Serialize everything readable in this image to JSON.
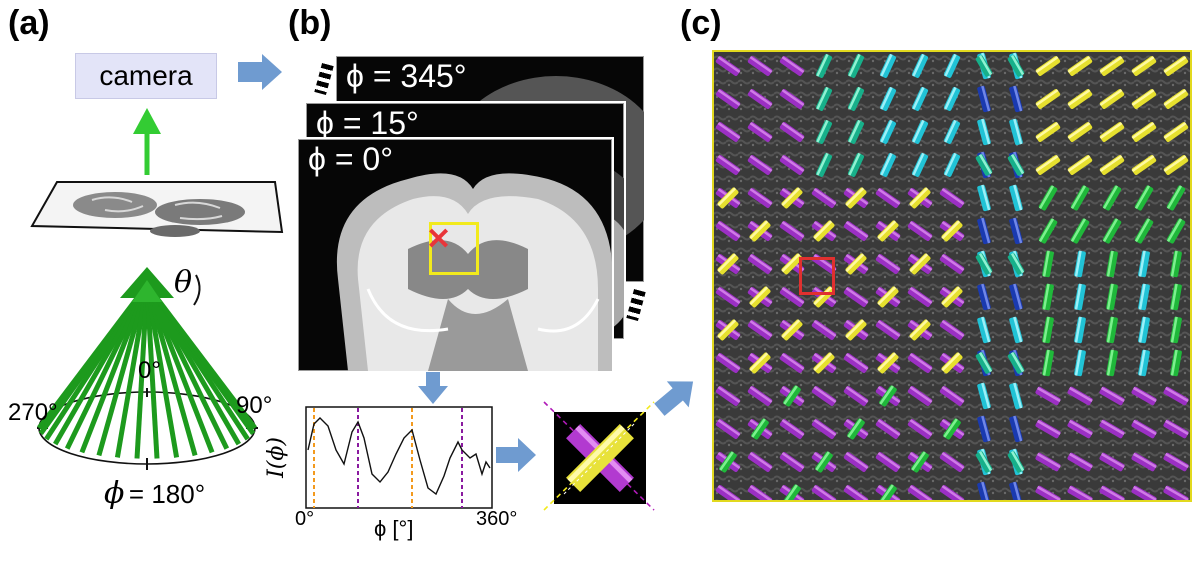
{
  "panel_labels": {
    "a": "(a)",
    "b": "(b)",
    "c": "(c)"
  },
  "panel_a": {
    "camera_label": "camera",
    "theta_label": "θ",
    "angle_labels": {
      "top": "0°",
      "right": "90°",
      "left": "270°",
      "bottom_symbol": "ϕ",
      "bottom_value": "= 180°"
    }
  },
  "panel_b": {
    "slice_labels": [
      "ϕ = 345°",
      "ϕ = 15°",
      "ϕ = 0°"
    ],
    "graph": {
      "ylabel": "I(ϕ)",
      "x_start": "0°",
      "x_end": "360°",
      "xlabel": "ϕ [°]"
    },
    "colors": {
      "roi_box": "#f2ea1c",
      "marker": "#e8353a",
      "orange_line": "#f39a1e",
      "purple_line": "#8a1aa0"
    }
  },
  "panel_c": {
    "colors": {
      "frame": "#e2d91e",
      "roi_box": "#e0302f"
    }
  },
  "colors": {
    "arrow_blue": "#6f9bd0",
    "cone_green": "#1d9a1d",
    "camera_arrow": "#33cc33"
  },
  "icons": [
    "blue-arrow-icon",
    "green-arrow-icon",
    "red-cross-icon"
  ]
}
